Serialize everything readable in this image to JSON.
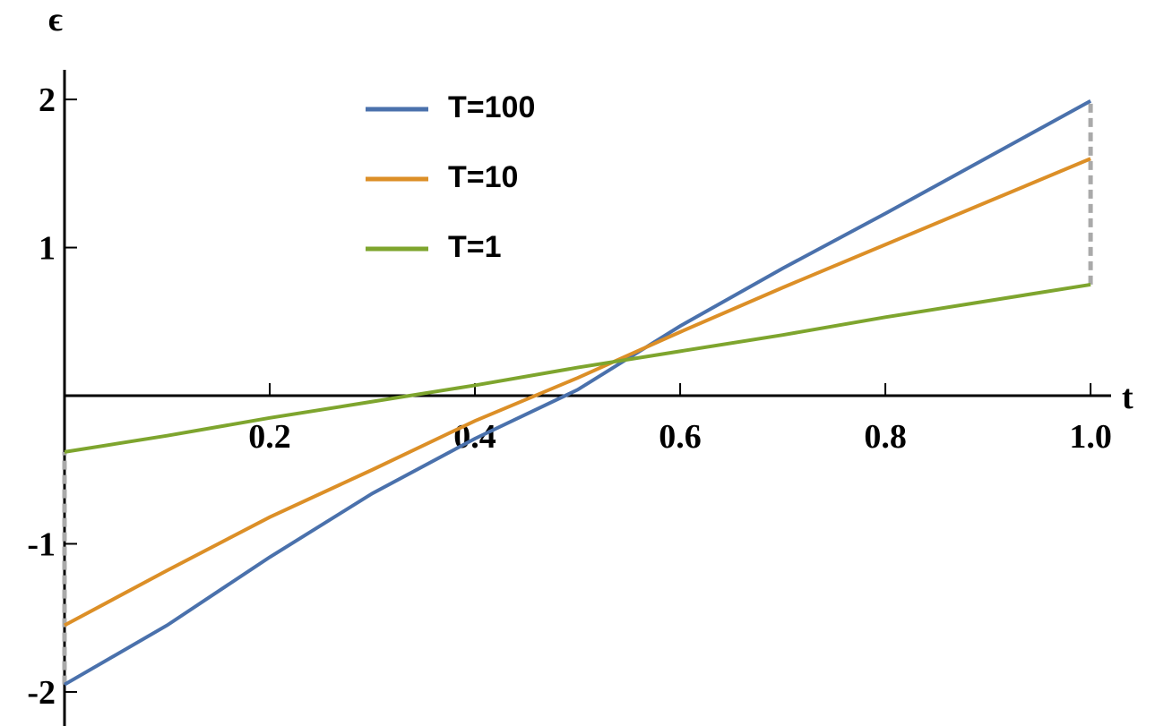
{
  "chart_data": {
    "type": "line",
    "xlabel": "t",
    "ylabel": "ϵ",
    "x": [
      0,
      0.1,
      0.2,
      0.3,
      0.4,
      0.5,
      0.6,
      0.7,
      0.8,
      0.9,
      1.0
    ],
    "series": [
      {
        "name": "T=100",
        "color": "#4a71ac",
        "values": [
          -1.95,
          -1.55,
          -1.09,
          -0.66,
          -0.29,
          0.04,
          0.47,
          0.86,
          1.23,
          1.61,
          1.99
        ]
      },
      {
        "name": "T=10",
        "color": "#dc8f27",
        "values": [
          -1.55,
          -1.18,
          -0.82,
          -0.5,
          -0.17,
          0.12,
          0.43,
          0.73,
          1.02,
          1.31,
          1.6
        ]
      },
      {
        "name": "T=1",
        "color": "#7ea52e",
        "values": [
          -0.38,
          -0.27,
          -0.15,
          -0.04,
          0.07,
          0.19,
          0.3,
          0.41,
          0.53,
          0.64,
          0.75
        ]
      }
    ],
    "xlim": [
      0,
      1.02
    ],
    "ylim": [
      -2.23,
      2.2
    ],
    "xticks": [
      0.2,
      0.4,
      0.6,
      0.8,
      {
        "value": 1,
        "label": "1.0"
      }
    ],
    "yticks": [
      -2,
      -1,
      1,
      2
    ],
    "legend": "top"
  }
}
